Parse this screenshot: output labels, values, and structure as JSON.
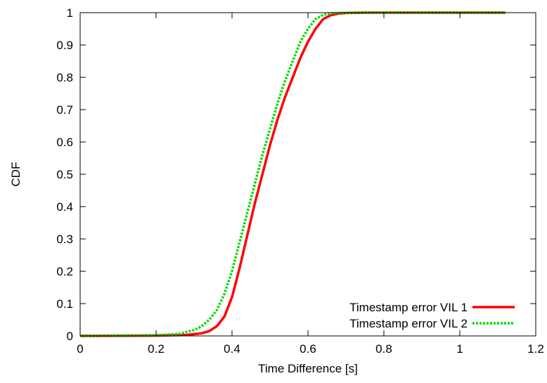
{
  "chart_data": {
    "type": "line",
    "xlabel": "Time Difference [s]",
    "ylabel": "CDF",
    "xlim": [
      0,
      1.2
    ],
    "ylim": [
      0,
      1
    ],
    "x_ticks": [
      "0",
      "0.2",
      "0.4",
      "0.6",
      "0.8",
      "1",
      "1.2"
    ],
    "y_ticks": [
      "0",
      "0.1",
      "0.2",
      "0.3",
      "0.4",
      "0.5",
      "0.6",
      "0.7",
      "0.8",
      "0.9",
      "1"
    ],
    "grid": false,
    "legend_position": "bottom-right",
    "series": [
      {
        "name": "Timestamp error VIL 1",
        "color": "#ff0000",
        "style": "solid",
        "x": [
          0,
          0.2,
          0.28,
          0.32,
          0.34,
          0.36,
          0.38,
          0.4,
          0.42,
          0.44,
          0.46,
          0.48,
          0.5,
          0.52,
          0.54,
          0.56,
          0.58,
          0.6,
          0.62,
          0.64,
          0.66,
          0.68,
          0.7,
          0.75,
          1.12
        ],
        "y": [
          0,
          0.001,
          0.003,
          0.008,
          0.015,
          0.03,
          0.06,
          0.12,
          0.21,
          0.31,
          0.41,
          0.5,
          0.59,
          0.67,
          0.74,
          0.8,
          0.86,
          0.91,
          0.95,
          0.98,
          0.992,
          0.997,
          0.999,
          1,
          1
        ]
      },
      {
        "name": "Timestamp error VIL 2",
        "color": "#00dd00",
        "style": "dashed",
        "x": [
          0,
          0.2,
          0.26,
          0.3,
          0.32,
          0.34,
          0.36,
          0.38,
          0.4,
          0.42,
          0.44,
          0.46,
          0.48,
          0.5,
          0.52,
          0.54,
          0.56,
          0.58,
          0.6,
          0.62,
          0.64,
          0.66,
          0.68,
          0.75,
          1.12
        ],
        "y": [
          0,
          0.002,
          0.006,
          0.018,
          0.03,
          0.05,
          0.08,
          0.13,
          0.2,
          0.29,
          0.38,
          0.47,
          0.56,
          0.64,
          0.72,
          0.79,
          0.85,
          0.91,
          0.95,
          0.98,
          0.993,
          0.998,
          0.999,
          1,
          1
        ]
      }
    ]
  }
}
